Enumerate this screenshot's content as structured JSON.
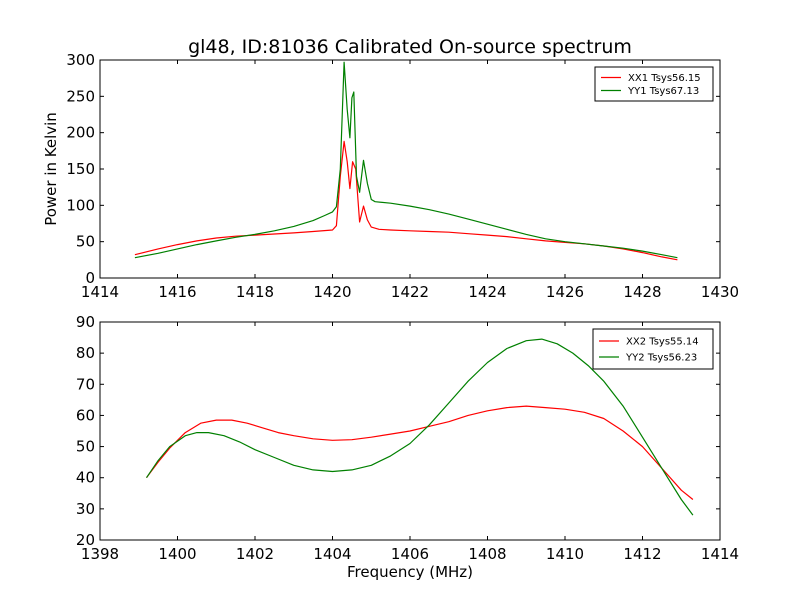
{
  "chart_data": [
    {
      "type": "line",
      "title": "gl48, ID:81036 Calibrated On-source spectrum",
      "xlabel": "",
      "ylabel": "Power in Kelvin",
      "xlim": [
        1414,
        1430
      ],
      "ylim": [
        0,
        300
      ],
      "xticks": [
        1414,
        1416,
        1418,
        1420,
        1422,
        1424,
        1426,
        1428,
        1430
      ],
      "yticks": [
        0,
        50,
        100,
        150,
        200,
        250,
        300
      ],
      "grid": false,
      "legend_position": "top-right",
      "series": [
        {
          "name": "XX1 Tsys56.15",
          "color": "#ff0000",
          "x": [
            1414.9,
            1415.5,
            1416,
            1416.5,
            1417,
            1417.5,
            1418,
            1418.5,
            1419,
            1419.5,
            1420,
            1420.1,
            1420.2,
            1420.3,
            1420.38,
            1420.45,
            1420.52,
            1420.6,
            1420.7,
            1420.8,
            1420.9,
            1421.0,
            1421.2,
            1421.5,
            1422,
            1422.5,
            1423,
            1423.5,
            1424,
            1424.5,
            1425,
            1425.5,
            1426,
            1426.5,
            1427,
            1427.5,
            1428,
            1428.5,
            1428.9
          ],
          "y": [
            32,
            40,
            46,
            51,
            55,
            57.5,
            59,
            60.5,
            62,
            64,
            66,
            72,
            140,
            188,
            160,
            123,
            160,
            150,
            77,
            99,
            80,
            70,
            67,
            66,
            65,
            64,
            63,
            61,
            59,
            57,
            54,
            51,
            49,
            47,
            44,
            40,
            35,
            29,
            25
          ]
        },
        {
          "name": "YY1 Tsys67.13",
          "color": "#008000",
          "x": [
            1414.9,
            1415.5,
            1416,
            1416.5,
            1417,
            1417.5,
            1418,
            1418.5,
            1419,
            1419.5,
            1419.8,
            1420.0,
            1420.1,
            1420.2,
            1420.3,
            1420.38,
            1420.45,
            1420.5,
            1420.55,
            1420.62,
            1420.7,
            1420.8,
            1420.9,
            1421.0,
            1421.1,
            1421.5,
            1422,
            1422.5,
            1423,
            1423.5,
            1424,
            1424.5,
            1425,
            1425.5,
            1426,
            1426.5,
            1427,
            1427.5,
            1428,
            1428.5,
            1428.9
          ],
          "y": [
            28,
            34,
            40,
            46,
            51,
            56,
            60,
            65,
            71,
            79,
            86,
            91,
            98,
            150,
            297,
            232,
            193,
            248,
            256,
            140,
            118,
            162,
            130,
            108,
            105,
            103,
            99,
            94,
            88,
            81,
            74,
            67,
            60,
            54,
            50,
            47,
            44,
            41,
            37,
            32,
            28
          ]
        }
      ]
    },
    {
      "type": "line",
      "title": "",
      "xlabel": "Frequency (MHz)",
      "ylabel": "",
      "xlim": [
        1398,
        1414
      ],
      "ylim": [
        20,
        90
      ],
      "xticks": [
        1398,
        1400,
        1402,
        1404,
        1406,
        1408,
        1410,
        1412,
        1414
      ],
      "yticks": [
        20,
        30,
        40,
        50,
        60,
        70,
        80,
        90
      ],
      "grid": false,
      "legend_position": "top-right",
      "series": [
        {
          "name": "XX2 Tsys55.14",
          "color": "#ff0000",
          "x": [
            1399.2,
            1399.5,
            1399.8,
            1400.2,
            1400.6,
            1401.0,
            1401.4,
            1401.8,
            1402.2,
            1402.6,
            1403.0,
            1403.5,
            1404.0,
            1404.5,
            1405.0,
            1405.5,
            1406.0,
            1406.5,
            1407.0,
            1407.5,
            1408.0,
            1408.5,
            1409.0,
            1409.5,
            1410.0,
            1410.5,
            1411.0,
            1411.5,
            1412.0,
            1412.5,
            1413.0,
            1413.3
          ],
          "y": [
            40,
            45,
            49.5,
            54.5,
            57.5,
            58.5,
            58.5,
            57.5,
            56,
            54.5,
            53.5,
            52.5,
            52,
            52.2,
            53,
            54,
            55,
            56.5,
            58,
            60,
            61.5,
            62.5,
            63,
            62.5,
            62,
            61,
            59,
            55,
            50,
            43,
            36,
            33
          ]
        },
        {
          "name": "YY2 Tsys56.23",
          "color": "#008000",
          "x": [
            1399.2,
            1399.5,
            1399.8,
            1400.2,
            1400.5,
            1400.8,
            1401.2,
            1401.6,
            1402.0,
            1402.5,
            1403.0,
            1403.5,
            1404.0,
            1404.5,
            1405.0,
            1405.5,
            1406.0,
            1406.5,
            1407.0,
            1407.5,
            1408.0,
            1408.5,
            1409.0,
            1409.4,
            1409.8,
            1410.2,
            1410.6,
            1411.0,
            1411.5,
            1412.0,
            1412.5,
            1413.0,
            1413.3
          ],
          "y": [
            40,
            45.5,
            50,
            53.5,
            54.5,
            54.5,
            53.5,
            51.5,
            49,
            46.5,
            44,
            42.5,
            42,
            42.5,
            44,
            47,
            51,
            57,
            64,
            71,
            77,
            81.5,
            84,
            84.5,
            83,
            80,
            76,
            71,
            63,
            53,
            43,
            33,
            28
          ]
        }
      ]
    }
  ]
}
